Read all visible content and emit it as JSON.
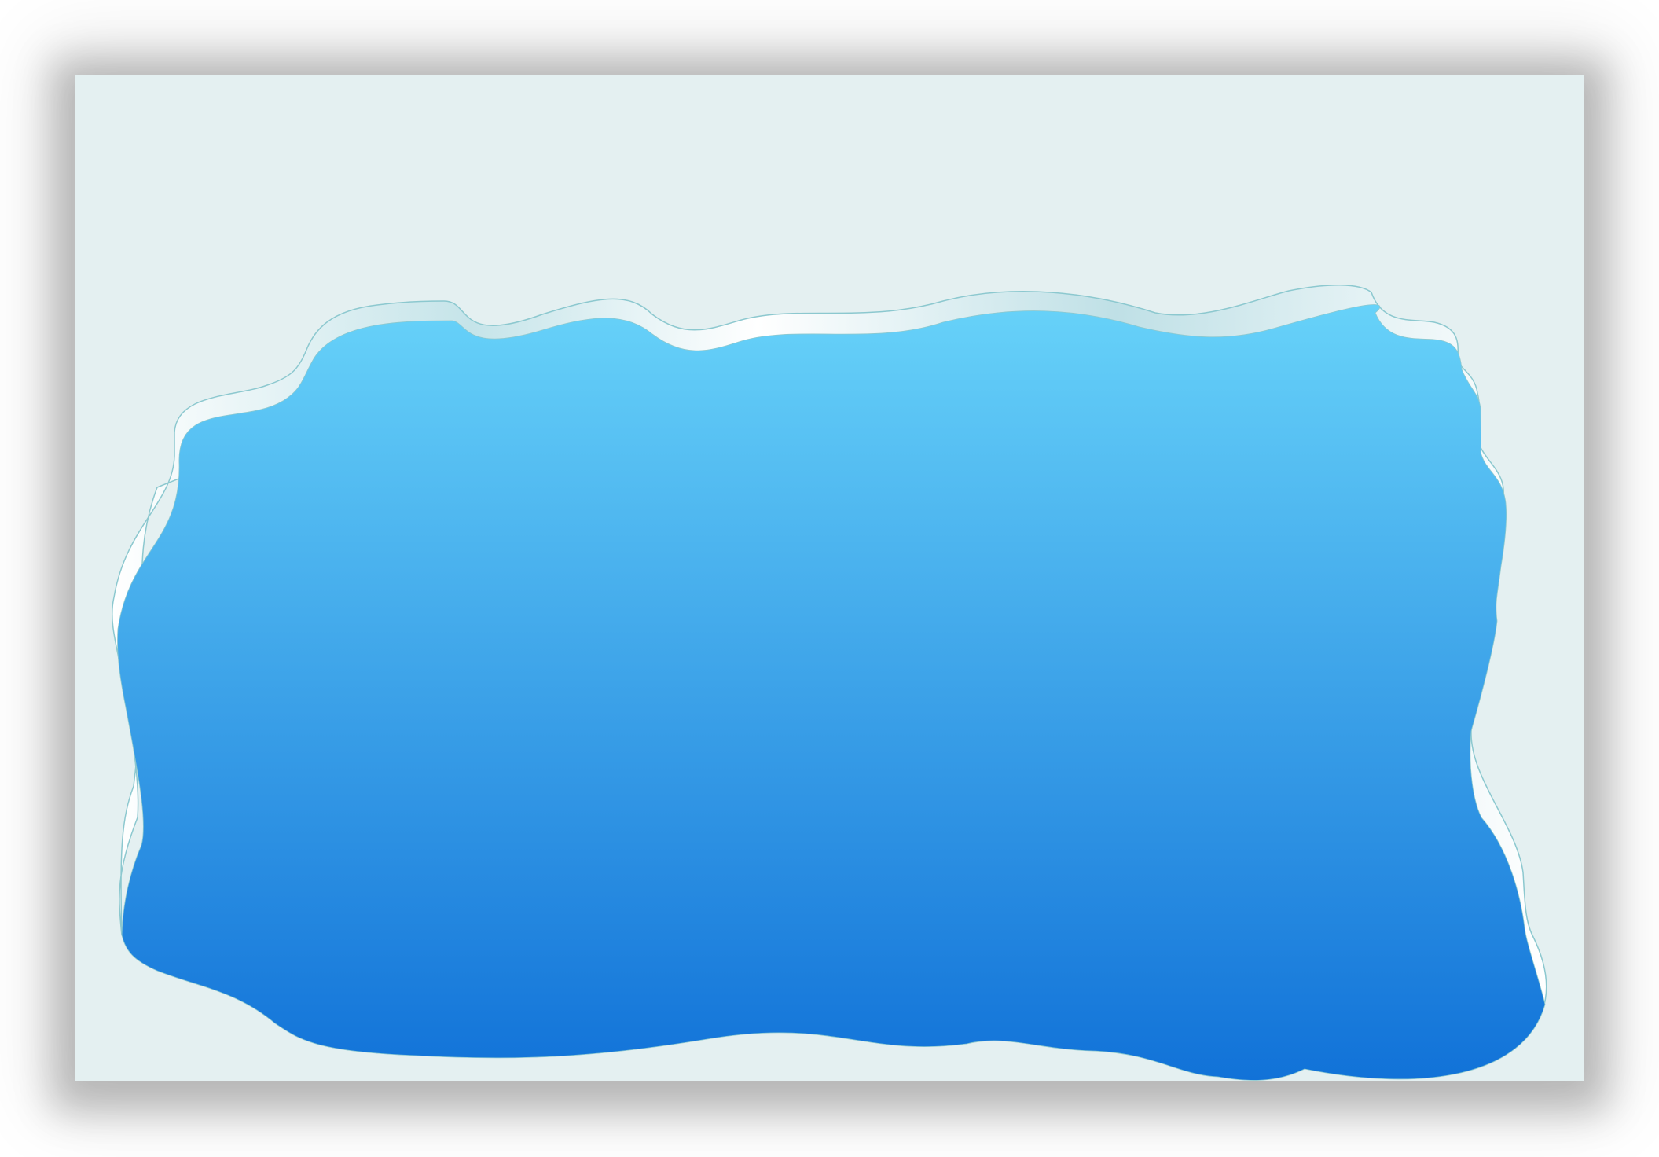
{
  "canvas": {
    "background_color": "#e4f0f1",
    "shadow_color": "#000000"
  },
  "blob": {
    "gradient_top_color": "#67d2f9",
    "gradient_bottom_color": "#1172d8",
    "rim_highlight_color": "#ffffff",
    "rim_shade_color": "#b7dde3",
    "outline_color": "#8cc8cf"
  }
}
